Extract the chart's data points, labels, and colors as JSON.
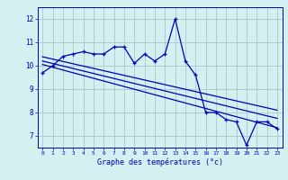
{
  "title": "Graphe des températures (°c)",
  "background_color": "#d4f0f0",
  "grid_color": "#aacfcf",
  "line_color": "#0000bb",
  "x_labels": [
    "0",
    "1",
    "2",
    "3",
    "4",
    "5",
    "6",
    "7",
    "8",
    "9",
    "10",
    "11",
    "12",
    "13",
    "14",
    "15",
    "16",
    "17",
    "18",
    "19",
    "20",
    "21",
    "22",
    "23"
  ],
  "ylim": [
    6.5,
    12.5
  ],
  "yticks": [
    7,
    8,
    9,
    10,
    11,
    12
  ],
  "temperatures": [
    9.7,
    10.0,
    10.4,
    10.5,
    10.6,
    10.5,
    10.5,
    10.8,
    10.8,
    10.1,
    10.5,
    10.2,
    10.5,
    12.0,
    10.2,
    9.6,
    8.0,
    8.0,
    7.7,
    7.6,
    6.6,
    7.6,
    7.6,
    7.3
  ],
  "trend_lines": [
    [
      10.05,
      7.35
    ],
    [
      10.2,
      7.75
    ],
    [
      10.38,
      8.1
    ]
  ]
}
